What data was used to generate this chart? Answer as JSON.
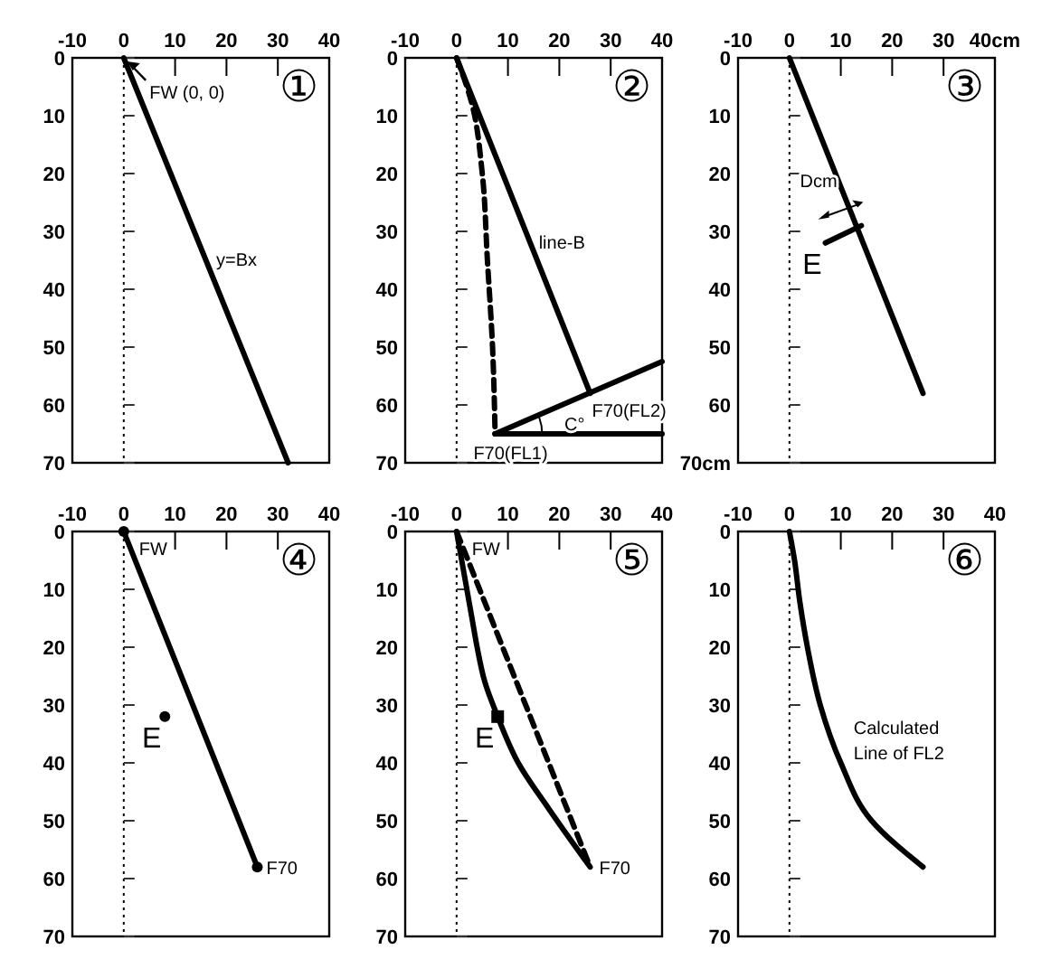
{
  "chart_data": [
    {
      "type": "line",
      "title": "①",
      "xlim": [
        -10,
        40
      ],
      "ylim": [
        70,
        0
      ],
      "xticks": [
        -10,
        0,
        10,
        20,
        30,
        40
      ],
      "yticks": [
        0,
        10,
        20,
        30,
        40,
        50,
        60,
        70
      ],
      "ref_lines": [
        {
          "axis": "x",
          "value": 0,
          "line_style": "dotted"
        }
      ],
      "series": [
        {
          "color": "#000000",
          "x": [
            0,
            32
          ],
          "values": [
            0,
            70
          ]
        }
      ],
      "annotations": [
        {
          "text": "FW (0, 0)",
          "x": 5,
          "y": 7
        },
        {
          "text": "y=Bx",
          "x": 18,
          "y": 36
        }
      ]
    },
    {
      "type": "line",
      "title": "②",
      "xlim": [
        -10,
        40
      ],
      "ylim": [
        70,
        0
      ],
      "xticks": [
        -10,
        0,
        10,
        20,
        30,
        40
      ],
      "yticks": [
        0,
        10,
        20,
        30,
        40,
        50,
        60,
        70
      ],
      "ref_lines": [
        {
          "axis": "x",
          "value": 0,
          "line_style": "dotted"
        }
      ],
      "series": [
        {
          "color": "#000000",
          "x": [
            0,
            26
          ],
          "values": [
            0,
            58
          ]
        },
        {
          "color": "#000000",
          "line_style": "dashed",
          "x": [
            0,
            3,
            5,
            6,
            7,
            7.5
          ],
          "values": [
            0,
            8,
            20,
            35,
            50,
            65
          ]
        },
        {
          "color": "#000000",
          "x": [
            7.5,
            40
          ],
          "values": [
            65,
            52.5
          ]
        },
        {
          "color": "#000000",
          "x": [
            7.5,
            40
          ],
          "values": [
            65,
            65
          ]
        }
      ],
      "annotations": [
        {
          "text": "line-B",
          "x": 16,
          "y": 33
        },
        {
          "text": "F70(FL2)",
          "x": 26,
          "y": 58
        },
        {
          "text": "C°",
          "x": 21,
          "y": 64.3
        },
        {
          "text": "F70(FL1)",
          "x": 7.5,
          "y": 65
        }
      ]
    },
    {
      "type": "line",
      "title": "③",
      "xlim": [
        -10,
        40
      ],
      "ylim": [
        70,
        0
      ],
      "xticks": [
        -10,
        0,
        10,
        20,
        30,
        {
          "value": 40,
          "label": "40cm"
        }
      ],
      "yticks": [
        0,
        10,
        20,
        30,
        40,
        50,
        60,
        {
          "value": 70,
          "label": "70cm"
        }
      ],
      "ref_lines": [
        {
          "axis": "x",
          "value": 0,
          "line_style": "dotted"
        }
      ],
      "series": [
        {
          "color": "#000000",
          "x": [
            0,
            26
          ],
          "values": [
            0,
            58
          ]
        },
        {
          "color": "#000000",
          "x": [
            7,
            14
          ],
          "values": [
            32,
            29
          ]
        }
      ],
      "annotations": [
        "Dcm",
        {
          "text": "E",
          "x": 7,
          "y": 32
        }
      ]
    },
    {
      "type": "line",
      "title": "④",
      "xlim": [
        -10,
        40
      ],
      "ylim": [
        70,
        0
      ],
      "xticks": [
        -10,
        0,
        10,
        20,
        30,
        40
      ],
      "yticks": [
        0,
        10,
        20,
        30,
        40,
        50,
        60,
        70
      ],
      "ref_lines": [
        {
          "axis": "x",
          "value": 0,
          "line_style": "dotted"
        }
      ],
      "series": [
        {
          "color": "#000000",
          "marker": "circle",
          "x": [
            0,
            26
          ],
          "values": [
            0,
            58
          ]
        },
        {
          "type": "scatter",
          "color": "#000000",
          "marker": "circle",
          "x": [
            8
          ],
          "values": [
            32
          ]
        }
      ],
      "annotations": [
        {
          "text": "FW",
          "x": 3,
          "y": 4
        },
        {
          "text": "F70",
          "x": 26,
          "y": 58
        },
        {
          "text": "E",
          "x": 8,
          "y": 32
        }
      ]
    },
    {
      "type": "line",
      "title": "⑤",
      "xlim": [
        -10,
        40
      ],
      "ylim": [
        70,
        0
      ],
      "xticks": [
        -10,
        0,
        10,
        20,
        30,
        40
      ],
      "yticks": [
        0,
        10,
        20,
        30,
        40,
        50,
        60,
        70
      ],
      "ref_lines": [
        {
          "axis": "x",
          "value": 0,
          "line_style": "dotted"
        }
      ],
      "series": [
        {
          "color": "#000000",
          "line_style": "dashed",
          "x": [
            0,
            26
          ],
          "values": [
            0,
            58
          ]
        },
        {
          "color": "#000000",
          "x": [
            0,
            1,
            2,
            3,
            4,
            5.5,
            8,
            12,
            18,
            26
          ],
          "values": [
            0,
            5,
            10,
            15,
            20,
            26,
            32,
            40,
            48,
            58
          ]
        },
        {
          "type": "scatter",
          "color": "#000000",
          "marker": "square",
          "x": [
            8
          ],
          "values": [
            32
          ]
        }
      ],
      "annotations": [
        {
          "text": "FW",
          "x": 3,
          "y": 4
        },
        {
          "text": "F70",
          "x": 26,
          "y": 58
        },
        {
          "text": "E",
          "x": 8,
          "y": 32
        }
      ]
    },
    {
      "type": "line",
      "title": "⑥",
      "xlim": [
        -10,
        40
      ],
      "ylim": [
        70,
        0
      ],
      "xticks": [
        -10,
        0,
        10,
        20,
        30,
        40
      ],
      "yticks": [
        0,
        10,
        20,
        30,
        40,
        50,
        60,
        70
      ],
      "ref_lines": [
        {
          "axis": "x",
          "value": 0,
          "line_style": "dotted"
        }
      ],
      "series": [
        {
          "color": "#000000",
          "x": [
            0,
            1,
            2,
            3.5,
            6,
            10,
            16,
            26
          ],
          "values": [
            0,
            5,
            12,
            20,
            30,
            40,
            50,
            58
          ]
        }
      ],
      "annotations": [
        "Calculated\nLine of FL2"
      ]
    }
  ]
}
